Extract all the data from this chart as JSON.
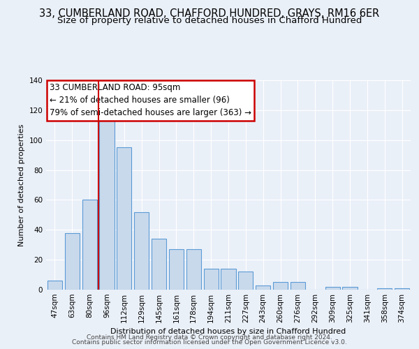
{
  "title_line1": "33, CUMBERLAND ROAD, CHAFFORD HUNDRED, GRAYS, RM16 6ER",
  "title_line2": "Size of property relative to detached houses in Chafford Hundred",
  "xlabel": "Distribution of detached houses by size in Chafford Hundred",
  "ylabel": "Number of detached properties",
  "categories": [
    "47sqm",
    "63sqm",
    "80sqm",
    "96sqm",
    "112sqm",
    "129sqm",
    "145sqm",
    "161sqm",
    "178sqm",
    "194sqm",
    "211sqm",
    "227sqm",
    "243sqm",
    "260sqm",
    "276sqm",
    "292sqm",
    "309sqm",
    "325sqm",
    "341sqm",
    "358sqm",
    "374sqm"
  ],
  "values": [
    6,
    38,
    60,
    115,
    95,
    52,
    34,
    27,
    27,
    14,
    14,
    12,
    3,
    5,
    5,
    0,
    2,
    2,
    0,
    1,
    1
  ],
  "bar_color": "#c9d9ec",
  "bar_edge_color": "#5b9bd5",
  "vline_x_index": 3,
  "vline_color": "#cc0000",
  "annotation_line1": "33 CUMBERLAND ROAD: 95sqm",
  "annotation_line2": "← 21% of detached houses are smaller (96)",
  "annotation_line3": "79% of semi-detached houses are larger (363) →",
  "annotation_box_color": "#cc0000",
  "ylim": [
    0,
    140
  ],
  "yticks": [
    0,
    20,
    40,
    60,
    80,
    100,
    120,
    140
  ],
  "background_color": "#eaf0f8",
  "grid_color": "#ffffff",
  "footer_line1": "Contains HM Land Registry data © Crown copyright and database right 2024.",
  "footer_line2": "Contains public sector information licensed under the Open Government Licence v3.0.",
  "title_fontsize": 10.5,
  "subtitle_fontsize": 9.5,
  "axis_label_fontsize": 8,
  "tick_fontsize": 7.5,
  "annotation_fontsize": 8.5,
  "footer_fontsize": 6.5
}
